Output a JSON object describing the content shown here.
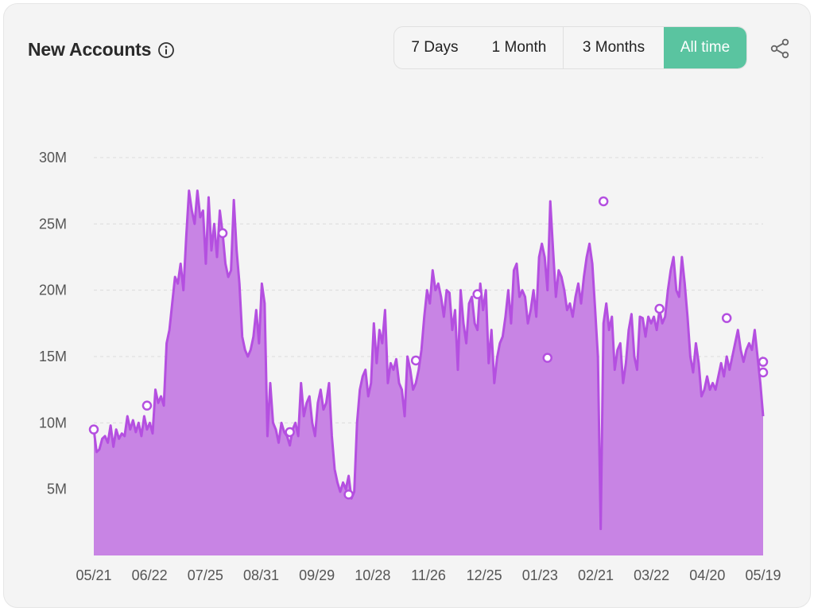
{
  "header": {
    "title": "New Accounts",
    "info_icon": "info-circle-icon",
    "share_icon": "share-icon"
  },
  "range_tabs": [
    {
      "label": "7 Days",
      "active": false
    },
    {
      "label": "1 Month",
      "active": false
    },
    {
      "label": "3 Months",
      "active": false
    },
    {
      "label": "All time",
      "active": true
    }
  ],
  "colors": {
    "accent": "#5ac4a0",
    "series_line": "#b44fe0",
    "series_fill": "#c884e4",
    "background": "#f4f4f4"
  },
  "chart_data": {
    "type": "area",
    "title": "",
    "xlabel": "",
    "ylabel": "",
    "ylim": [
      0,
      30
    ],
    "y_unit": "M",
    "y_ticks": [
      "5M",
      "10M",
      "15M",
      "20M",
      "25M",
      "30M"
    ],
    "x_ticks": [
      "05/21",
      "06/22",
      "07/25",
      "08/31",
      "09/29",
      "10/28",
      "11/26",
      "12/25",
      "01/23",
      "02/21",
      "03/22",
      "04/20",
      "05/19"
    ],
    "grid": true,
    "series": [
      {
        "values": [
          9.5,
          7.8,
          8.0,
          8.8,
          9.0,
          8.5,
          9.8,
          8.2,
          9.5,
          8.8,
          9.2,
          9.0,
          10.5,
          9.5,
          10.2,
          9.3,
          10.0,
          9.0,
          10.5,
          9.5,
          10.0,
          9.2,
          12.5,
          11.5,
          12.0,
          11.3,
          16.0,
          17.0,
          19.0,
          21.0,
          20.5,
          22.0,
          20.0,
          24.0,
          27.5,
          26.0,
          25.0,
          27.5,
          25.5,
          26.0,
          22.0,
          27.0,
          23.0,
          25.0,
          22.5,
          26.0,
          24.3,
          22.0,
          21.0,
          21.5,
          26.8,
          23.0,
          20.5,
          16.5,
          15.5,
          15.0,
          15.5,
          16.5,
          18.5,
          16.0,
          20.5,
          19.0,
          9.0,
          13.0,
          10.0,
          9.5,
          8.5,
          10.0,
          9.3,
          9.0,
          8.3,
          9.5,
          10.0,
          9.0,
          13.0,
          10.5,
          11.5,
          12.0,
          10.0,
          9.0,
          11.5,
          12.5,
          11.0,
          11.5,
          13.0,
          9.0,
          6.5,
          5.5,
          4.8,
          5.5,
          5.0,
          6.0,
          4.3,
          4.8,
          10.0,
          12.5,
          13.5,
          14.0,
          12.0,
          13.0,
          17.5,
          14.5,
          17.0,
          16.0,
          18.5,
          13.0,
          14.5,
          14.0,
          14.8,
          13.0,
          12.5,
          10.5,
          15.0,
          14.0,
          12.5,
          13.0,
          14.0,
          15.5,
          18.0,
          20.0,
          19.0,
          21.5,
          20.0,
          20.5,
          19.5,
          18.0,
          20.0,
          19.8,
          17.0,
          18.5,
          14.0,
          20.0,
          17.5,
          16.0,
          19.0,
          19.5,
          17.5,
          17.0,
          20.5,
          18.5,
          20.0,
          14.5,
          17.0,
          13.0,
          14.9,
          16.0,
          16.5,
          18.0,
          20.0,
          17.5,
          21.5,
          22.0,
          19.5,
          20.0,
          19.5,
          17.5,
          18.5,
          20.0,
          18.0,
          22.5,
          23.5,
          22.5,
          20.0,
          26.7,
          23.0,
          19.5,
          21.5,
          21.0,
          20.0,
          18.5,
          19.0,
          18.0,
          19.5,
          20.5,
          19.0,
          21.0,
          22.5,
          23.5,
          22.0,
          18.6,
          15.0,
          2.0,
          17.5,
          19.0,
          17.0,
          18.0,
          14.0,
          15.5,
          16.0,
          13.0,
          14.5,
          17.0,
          18.2,
          15.0,
          14.0,
          18.0,
          17.9,
          16.5,
          18.0,
          17.5,
          18.0,
          17.0,
          18.5,
          17.5,
          18.0,
          20.0,
          21.5,
          22.5,
          20.0,
          19.5,
          22.5,
          20.5,
          18.0,
          15.0,
          13.8,
          16.0,
          14.5,
          12.0,
          12.5,
          13.5,
          12.5,
          13.0,
          12.5,
          13.5,
          14.5,
          13.5,
          15.0,
          14.0,
          15.0,
          16.0,
          17.0,
          15.5,
          14.6,
          15.5,
          16.0,
          15.5,
          17.0,
          15.0,
          13.0,
          10.5
        ]
      }
    ],
    "highlighted_points": [
      {
        "x": "05/21",
        "y": 9.5
      },
      {
        "x": "06/18",
        "y": 11.3
      },
      {
        "x": "07/28",
        "y": 24.3
      },
      {
        "x": "09/03",
        "y": 9.3
      },
      {
        "x": "09/29",
        "y": 4.6
      },
      {
        "x": "10/30",
        "y": 14.7
      },
      {
        "x": "11/30",
        "y": 19.7
      },
      {
        "x": "12/25",
        "y": 14.9
      },
      {
        "x": "01/24",
        "y": 26.7
      },
      {
        "x": "02/21",
        "y": 18.6
      },
      {
        "x": "03/25",
        "y": 17.9
      },
      {
        "x": "04/20",
        "y": 13.8
      },
      {
        "x": "05/21",
        "y": 14.6
      }
    ]
  }
}
